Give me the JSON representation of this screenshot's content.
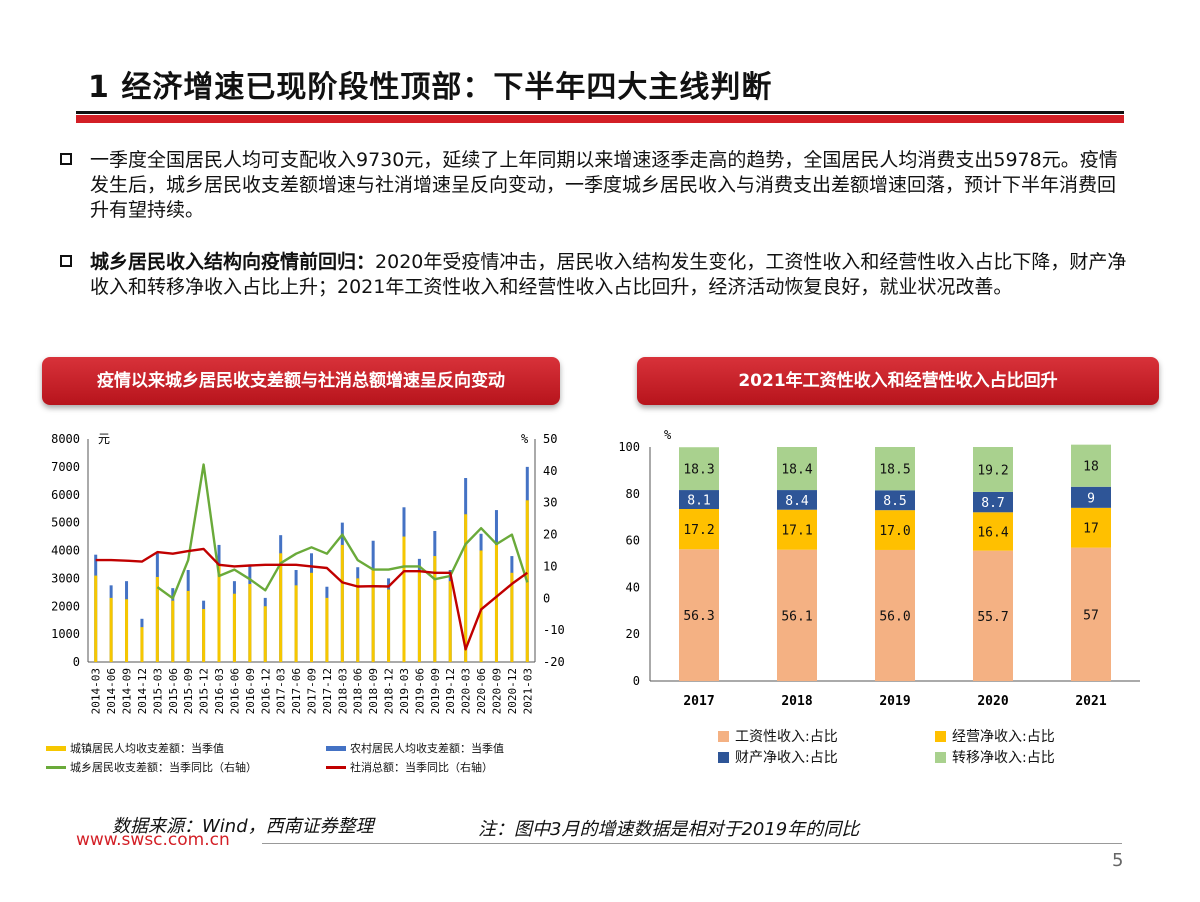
{
  "header": {
    "title": "1 经济增速已现阶段性顶部：下半年四大主线判断"
  },
  "bullets": [
    {
      "bold": "",
      "text": "一季度全国居民人均可支配收入9730元，延续了上年同期以来增速逐季走高的趋势，全国居民人均消费支出5978元。疫情发生后，城乡居民收支差额增速与社消增速呈反向变动，一季度城乡居民收入与消费支出差额增速回落，预计下半年消费回升有望持续。"
    },
    {
      "bold": "城乡居民收入结构向疫情前回归：",
      "text": "2020年受疫情冲击，居民收入结构发生变化，工资性收入和经营性收入占比下降，财产净收入和转移净收入占比上升；2021年工资性收入和经营性收入占比回升，经济活动恢复良好，就业状况改善。"
    }
  ],
  "banners": {
    "left": "疫情以来城乡居民收支差额与社消总额增速呈反向变动",
    "right": "2021年工资性收入和经营性收入占比回升"
  },
  "colors": {
    "accent_red": "#d31f26",
    "urban_bar": "#f6c700",
    "rural_bar": "#4472c4",
    "diff_line": "#6aaa3a",
    "retail_line": "#c00000",
    "wage": "#f4b183",
    "business": "#ffc000",
    "property": "#2e5597",
    "transfer": "#a9d18e"
  },
  "chart_data": [
    {
      "type": "bar",
      "categories": [
        "2014-03",
        "2014-06",
        "2014-09",
        "2014-12",
        "2015-03",
        "2015-06",
        "2015-09",
        "2015-12",
        "2016-03",
        "2016-06",
        "2016-09",
        "2016-12",
        "2017-03",
        "2017-06",
        "2017-09",
        "2017-12",
        "2018-03",
        "2018-06",
        "2018-09",
        "2018-12",
        "2019-03",
        "2019-06",
        "2019-09",
        "2019-12",
        "2020-03",
        "2020-06",
        "2020-09",
        "2020-12",
        "2021-03"
      ],
      "y_left": {
        "unit": "元",
        "ylim": [
          0,
          8000
        ],
        "ticks": [
          0,
          1000,
          2000,
          3000,
          4000,
          5000,
          6000,
          7000,
          8000
        ]
      },
      "y_right": {
        "unit": "%",
        "ylim": [
          -20,
          50
        ],
        "ticks": [
          -20,
          -10,
          0,
          10,
          20,
          30,
          40,
          50
        ]
      },
      "series": [
        {
          "name": "城镇居民人均收支差额：当季值",
          "kind": "bar",
          "axis": "left",
          "values": [
            3100,
            2300,
            2250,
            1250,
            3050,
            2200,
            2550,
            1900,
            3450,
            2450,
            2800,
            2000,
            3900,
            2750,
            3200,
            2300,
            4200,
            3000,
            3350,
            2600,
            4500,
            3300,
            3800,
            2900,
            5300,
            4000,
            4200,
            3200,
            5800
          ]
        },
        {
          "name": "农村居民人均收支差额：当季值",
          "kind": "bar",
          "axis": "left",
          "values": [
            3850,
            2750,
            2900,
            1550,
            3900,
            2650,
            3300,
            2200,
            4200,
            2900,
            3500,
            2300,
            4550,
            3300,
            3900,
            2700,
            5000,
            3400,
            4350,
            3000,
            5550,
            3700,
            4700,
            3300,
            6600,
            4600,
            5450,
            3800,
            7000
          ]
        },
        {
          "name": "城乡居民收支差额：当季同比（右轴）",
          "kind": "line",
          "axis": "right",
          "values": [
            null,
            null,
            null,
            null,
            3.5,
            0,
            12,
            42,
            7,
            9,
            6,
            2.5,
            11,
            14,
            16,
            14,
            20,
            12,
            9,
            9,
            10,
            10,
            6,
            7,
            17,
            22,
            17,
            20,
            5
          ]
        },
        {
          "name": "社消总额：当季同比（右轴）",
          "kind": "line",
          "axis": "right",
          "values": [
            12,
            12,
            11.8,
            11.5,
            14.5,
            14,
            14.8,
            15.5,
            10.5,
            10,
            10.3,
            10.5,
            10.5,
            10.5,
            10,
            9.5,
            5,
            3.7,
            3.8,
            3.7,
            8.5,
            8.5,
            8,
            8,
            -16,
            -3.5,
            0.5,
            4.5,
            8
          ]
        }
      ]
    },
    {
      "type": "bar",
      "stacked": true,
      "categories": [
        "2017",
        "2018",
        "2019",
        "2020",
        "2021"
      ],
      "y_unit": "%",
      "ylim": [
        0,
        100
      ],
      "ticks": [
        0,
        20,
        40,
        60,
        80,
        100
      ],
      "series": [
        {
          "name": "工资性收入:占比",
          "values": [
            56.3,
            56.1,
            56.0,
            55.7,
            57
          ],
          "labels": [
            "56.3",
            "56.1",
            "56.0",
            "55.7",
            "57"
          ]
        },
        {
          "name": "经营净收入:占比",
          "values": [
            17.2,
            17.1,
            17.0,
            16.4,
            17
          ],
          "labels": [
            "17.2",
            "17.1",
            "17.0",
            "16.4",
            "17"
          ]
        },
        {
          "name": "财产净收入:占比",
          "values": [
            8.1,
            8.4,
            8.5,
            8.7,
            9
          ],
          "labels": [
            "8.1",
            "8.4",
            "8.5",
            "8.7",
            "9"
          ]
        },
        {
          "name": "转移净收入:占比",
          "values": [
            18.3,
            18.4,
            18.5,
            19.2,
            18
          ],
          "labels": [
            "18.3",
            "18.4",
            "18.5",
            "19.2",
            "18"
          ]
        }
      ]
    }
  ],
  "footer": {
    "source": "数据来源：Wind，西南证券整理",
    "note": "注：图中3月的增速数据是相对于2019年的同比",
    "website": "www.swsc.com.cn",
    "page": "5"
  }
}
